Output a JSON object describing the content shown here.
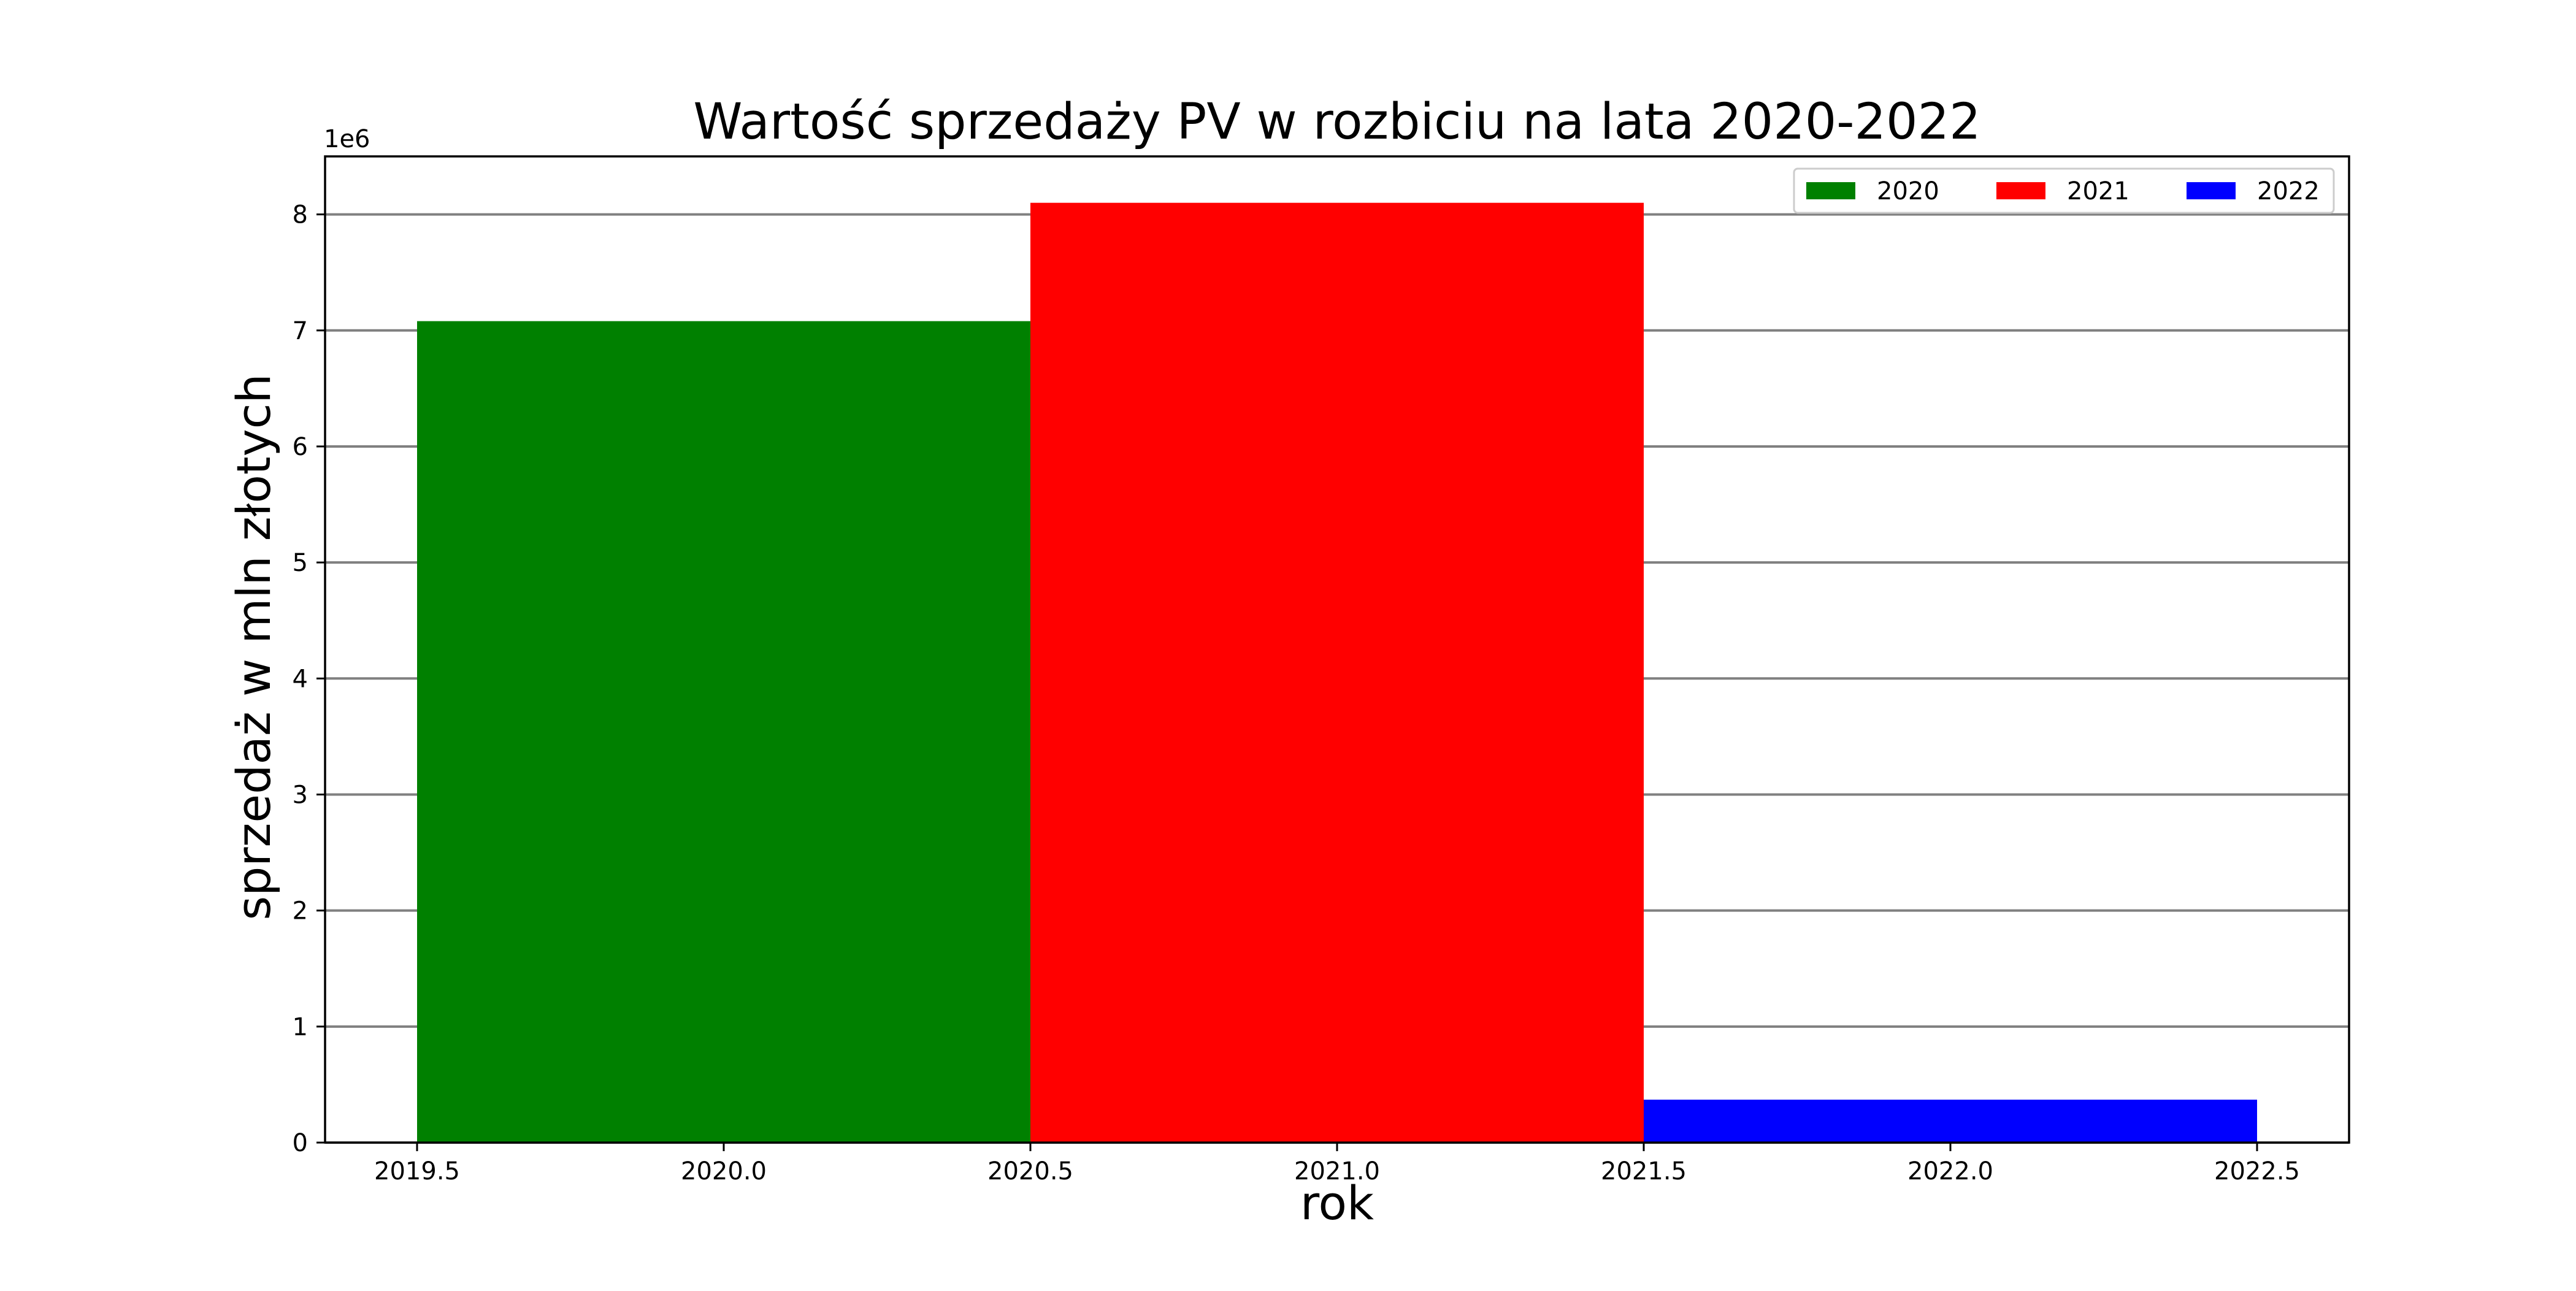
{
  "chart_data": {
    "type": "bar",
    "title": "Wartość sprzedaży PV w rozbiciu na lata 2020-2022",
    "xlabel": "rok",
    "ylabel": "sprzedaż w mln złotych",
    "y_offset_label": "1e6",
    "xlim": [
      2019.35,
      2022.65
    ],
    "ylim": [
      0,
      8.5
    ],
    "x_ticks": [
      2019.5,
      2020.0,
      2020.5,
      2021.0,
      2021.5,
      2022.0,
      2022.5
    ],
    "x_tick_labels": [
      "2019.5",
      "2020.0",
      "2020.5",
      "2021.0",
      "2021.5",
      "2022.0",
      "2022.5"
    ],
    "y_ticks": [
      0,
      1,
      2,
      3,
      4,
      5,
      6,
      7,
      8
    ],
    "y_tick_labels": [
      "0",
      "1",
      "2",
      "3",
      "4",
      "5",
      "6",
      "7",
      "8"
    ],
    "grid": "horizontal",
    "legend_position": "top-right",
    "bars": [
      {
        "name": "2020",
        "x_center": 2020.0,
        "width": 1.0,
        "value": 7.08,
        "color": "#008000"
      },
      {
        "name": "2021",
        "x_center": 2021.0,
        "width": 1.0,
        "value": 8.1,
        "color": "#ff0000"
      },
      {
        "name": "2022",
        "x_center": 2022.0,
        "width": 1.0,
        "value": 0.37,
        "color": "#0000ff"
      }
    ]
  }
}
